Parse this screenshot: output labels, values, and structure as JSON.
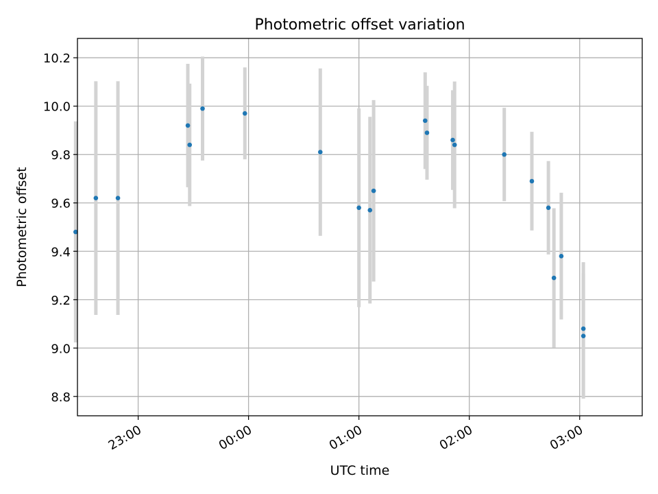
{
  "chart_data": {
    "type": "scatter",
    "title": "Photometric offset variation",
    "xlabel": "UTC time",
    "ylabel": "Photometric offset",
    "x_axis_kind": "time (HH:MM)",
    "xlim": [
      "22:27",
      "03:34"
    ],
    "ylim": [
      8.72,
      10.28
    ],
    "x_ticks": [
      "23:00",
      "00:00",
      "01:00",
      "02:00",
      "03:00"
    ],
    "y_ticks": [
      "8.8",
      "9.0",
      "9.2",
      "9.4",
      "9.6",
      "9.8",
      "10.0",
      "10.2"
    ],
    "grid": true,
    "legend": "none",
    "colors": {
      "point": "#1f77b4",
      "errorbar": "#d3d3d3",
      "grid": "#b0b0b0"
    },
    "points": [
      {
        "x": "22:26",
        "y": 9.48,
        "err": 0.457
      },
      {
        "x": "22:37",
        "y": 9.62,
        "err": 0.483
      },
      {
        "x": "22:49",
        "y": 9.62,
        "err": 0.483
      },
      {
        "x": "23:27",
        "y": 9.92,
        "err": 0.255
      },
      {
        "x": "23:28",
        "y": 9.84,
        "err": 0.253
      },
      {
        "x": "23:35",
        "y": 9.99,
        "err": 0.215
      },
      {
        "x": "23:58",
        "y": 9.97,
        "err": 0.19
      },
      {
        "x": "00:39",
        "y": 9.81,
        "err": 0.346
      },
      {
        "x": "01:00",
        "y": 9.58,
        "err": 0.411
      },
      {
        "x": "01:06",
        "y": 9.57,
        "err": 0.386
      },
      {
        "x": "01:08",
        "y": 9.65,
        "err": 0.375
      },
      {
        "x": "01:36",
        "y": 9.94,
        "err": 0.2
      },
      {
        "x": "01:37",
        "y": 9.89,
        "err": 0.194
      },
      {
        "x": "01:51",
        "y": 9.86,
        "err": 0.206
      },
      {
        "x": "01:52",
        "y": 9.84,
        "err": 0.262
      },
      {
        "x": "02:19",
        "y": 9.8,
        "err": 0.193
      },
      {
        "x": "02:34",
        "y": 9.69,
        "err": 0.204
      },
      {
        "x": "02:43",
        "y": 9.58,
        "err": 0.193
      },
      {
        "x": "02:46",
        "y": 9.29,
        "err": 0.288
      },
      {
        "x": "02:50",
        "y": 9.38,
        "err": 0.262
      },
      {
        "x": "03:02",
        "y": 9.08,
        "err": 0.275
      },
      {
        "x": "03:02",
        "y": 9.05,
        "err": 0.259
      }
    ]
  }
}
